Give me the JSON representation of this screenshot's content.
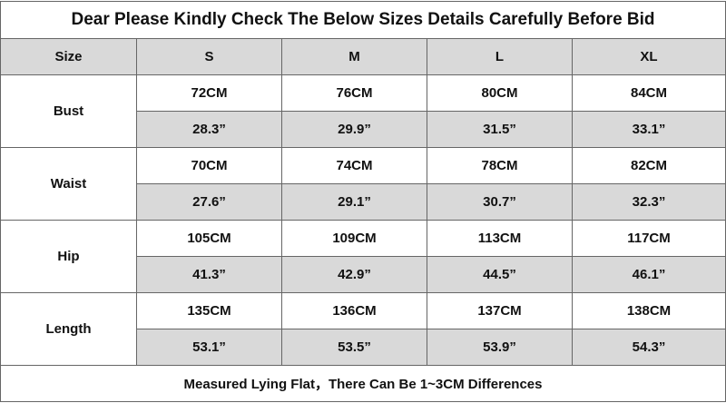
{
  "title": "Dear Please Kindly Check The Below Sizes Details Carefully Before Bid",
  "header": [
    "Size",
    "S",
    "M",
    "L",
    "XL"
  ],
  "rows": [
    {
      "label": "Bust",
      "cm": [
        "72CM",
        "76CM",
        "80CM",
        "84CM"
      ],
      "inch": [
        "28.3”",
        "29.9”",
        "31.5”",
        "33.1”"
      ]
    },
    {
      "label": "Waist",
      "cm": [
        "70CM",
        "74CM",
        "78CM",
        "82CM"
      ],
      "inch": [
        "27.6”",
        "29.1”",
        "30.7”",
        "32.3”"
      ]
    },
    {
      "label": "Hip",
      "cm": [
        "105CM",
        "109CM",
        "113CM",
        "117CM"
      ],
      "inch": [
        "41.3”",
        "42.9”",
        "44.5”",
        "46.1”"
      ]
    },
    {
      "label": "Length",
      "cm": [
        "135CM",
        "136CM",
        "137CM",
        "138CM"
      ],
      "inch": [
        "53.1”",
        "53.5”",
        "53.9”",
        "54.3”"
      ]
    }
  ],
  "footer": "Measured Lying Flat，There Can Be 1~3CM Differences"
}
